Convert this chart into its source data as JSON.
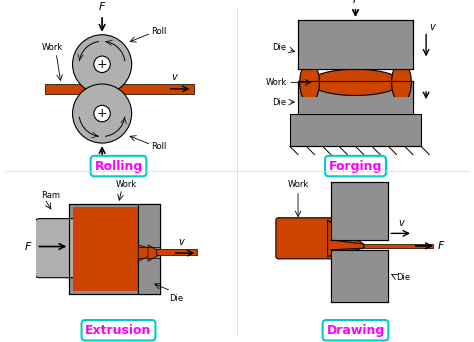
{
  "bg_color": "#ffffff",
  "orange": "#cc4400",
  "gray": "#909090",
  "light_gray": "#b0b0b0",
  "cyan_border": "#00cccc",
  "magenta_text": "#ff00ff",
  "labels": {
    "rolling": "Rolling",
    "forging": "Forging",
    "extrusion": "Extrusion",
    "drawing": "Drawing"
  }
}
